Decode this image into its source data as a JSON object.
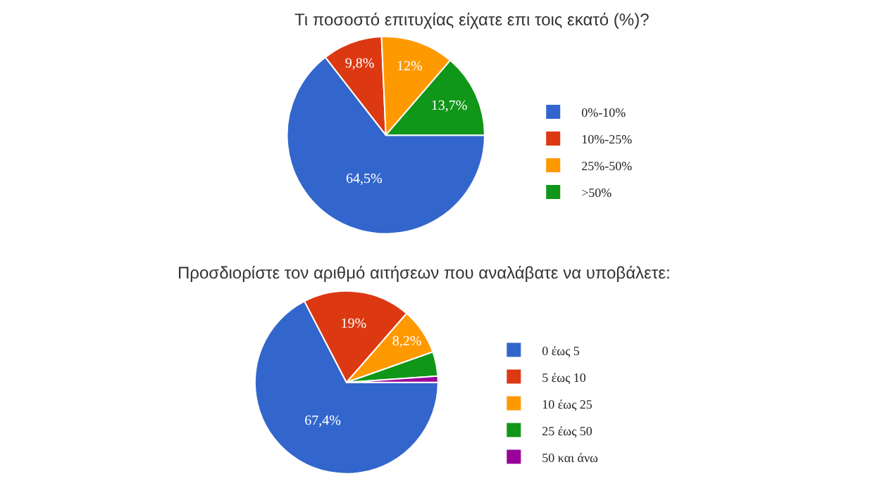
{
  "chart_data": [
    {
      "type": "pie",
      "title": "Τι ποσοστό επιτυχίας είχατε επι τοις εκατό (%)?",
      "categories": [
        "0%-10%",
        "10%-25%",
        "25%-50%",
        ">50%"
      ],
      "values": [
        64.5,
        9.8,
        12,
        13.7
      ],
      "value_labels": [
        "64,5%",
        "9,8%",
        "12%",
        "13,7%"
      ],
      "colors": [
        "#3366cc",
        "#dc3912",
        "#ff9900",
        "#109618"
      ],
      "legend": "right"
    },
    {
      "type": "pie",
      "title": "Προσδιορίστε τον αριθμό αιτήσεων που αναλάβατε να υποβάλετε:",
      "categories": [
        "0 έως 5",
        "5 έως 10",
        "10 έως 25",
        "25 έως 50",
        "50 και άνω"
      ],
      "values": [
        67.4,
        19,
        8.2,
        4.3,
        1.1
      ],
      "value_labels": [
        "67,4%",
        "19%",
        "8,2%",
        null,
        null
      ],
      "colors": [
        "#3366cc",
        "#dc3912",
        "#ff9900",
        "#109618",
        "#990099"
      ],
      "legend": "right"
    }
  ]
}
